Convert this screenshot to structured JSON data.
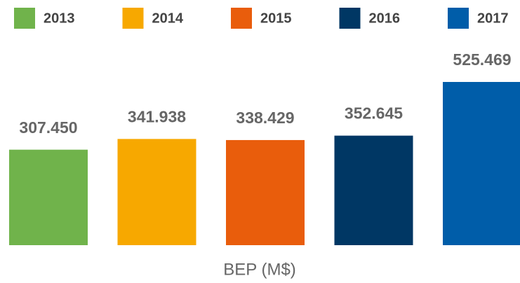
{
  "chart_data": {
    "type": "bar",
    "categories": [
      "2013",
      "2014",
      "2015",
      "2016",
      "2017"
    ],
    "values": [
      307.45,
      341.938,
      338.429,
      352.645,
      525.469
    ],
    "value_labels": [
      "307.450",
      "341.938",
      "338.429",
      "352.645",
      "525.469"
    ],
    "colors": [
      "#70b34b",
      "#f7a800",
      "#e95d0c",
      "#003764",
      "#005da9"
    ],
    "x_label": "BEP (M$)",
    "legend": "top"
  }
}
